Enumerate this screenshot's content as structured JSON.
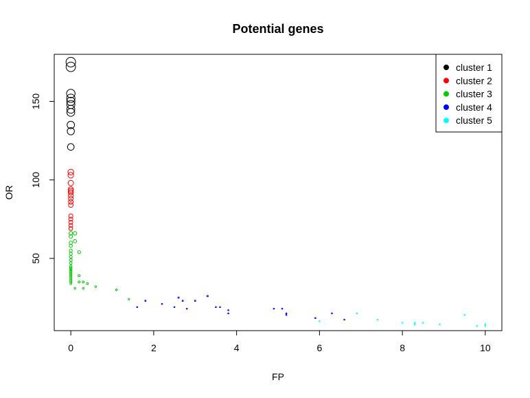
{
  "chart_data": {
    "type": "scatter",
    "title": "Potential genes",
    "xlabel": "FP",
    "ylabel": "OR",
    "xlim": [
      -0.4,
      10.4
    ],
    "ylim": [
      4,
      180
    ],
    "x_ticks": [
      0,
      2,
      4,
      6,
      8,
      10
    ],
    "y_ticks": [
      50,
      100,
      150
    ],
    "grid": false,
    "legend_position": "top-right",
    "series": [
      {
        "name": "cluster 1",
        "color": "#000000",
        "points": [
          [
            0,
            175
          ],
          [
            0,
            172
          ],
          [
            0,
            155
          ],
          [
            0,
            152
          ],
          [
            0,
            150
          ],
          [
            0,
            148
          ],
          [
            0,
            145
          ],
          [
            0,
            143
          ],
          [
            0,
            135
          ],
          [
            0,
            131
          ],
          [
            0,
            121
          ]
        ]
      },
      {
        "name": "cluster 2",
        "color": "#ff0000",
        "points": [
          [
            0,
            105
          ],
          [
            0,
            103
          ],
          [
            0,
            98
          ],
          [
            0,
            94
          ],
          [
            0,
            93
          ],
          [
            0,
            92
          ],
          [
            0,
            90
          ],
          [
            0,
            88
          ],
          [
            0,
            86
          ],
          [
            0,
            84
          ],
          [
            0,
            77
          ],
          [
            0,
            75
          ],
          [
            0,
            73
          ],
          [
            0,
            71
          ],
          [
            0,
            69
          ]
        ]
      },
      {
        "name": "cluster 3",
        "color": "#00cd00",
        "points": [
          [
            0,
            66
          ],
          [
            0,
            64
          ],
          [
            0,
            60
          ],
          [
            0,
            58
          ],
          [
            0,
            55
          ],
          [
            0,
            53
          ],
          [
            0,
            51
          ],
          [
            0,
            49
          ],
          [
            0,
            47
          ],
          [
            0,
            45
          ],
          [
            0,
            44
          ],
          [
            0,
            43
          ],
          [
            0,
            42
          ],
          [
            0,
            41
          ],
          [
            0,
            40
          ],
          [
            0,
            39
          ],
          [
            0,
            38
          ],
          [
            0,
            37
          ],
          [
            0,
            36
          ],
          [
            0,
            35
          ],
          [
            0,
            34
          ],
          [
            0.1,
            66
          ],
          [
            0.1,
            61
          ],
          [
            0.1,
            31
          ],
          [
            0.2,
            54
          ],
          [
            0.2,
            39
          ],
          [
            0.2,
            35
          ],
          [
            0.3,
            35
          ],
          [
            0.3,
            31
          ],
          [
            0.4,
            34
          ],
          [
            0.6,
            32
          ],
          [
            1.1,
            30
          ],
          [
            1.4,
            24
          ]
        ]
      },
      {
        "name": "cluster 4",
        "color": "#0000ff",
        "points": [
          [
            1.6,
            19
          ],
          [
            1.8,
            23
          ],
          [
            2.2,
            21
          ],
          [
            2.5,
            19
          ],
          [
            2.6,
            25
          ],
          [
            2.7,
            23
          ],
          [
            2.8,
            18
          ],
          [
            3.0,
            23
          ],
          [
            3.3,
            26
          ],
          [
            3.5,
            19
          ],
          [
            3.6,
            19
          ],
          [
            3.8,
            17
          ],
          [
            3.8,
            15
          ],
          [
            4.9,
            18
          ],
          [
            5.1,
            18
          ],
          [
            5.2,
            15
          ],
          [
            5.2,
            14
          ],
          [
            5.9,
            12
          ],
          [
            6.3,
            15
          ],
          [
            6.6,
            11
          ]
        ]
      },
      {
        "name": "cluster 5",
        "color": "#00ffff",
        "points": [
          [
            6.0,
            10
          ],
          [
            6.9,
            15
          ],
          [
            7.4,
            11
          ],
          [
            8.0,
            9
          ],
          [
            8.3,
            9
          ],
          [
            8.3,
            8
          ],
          [
            8.5,
            9
          ],
          [
            8.9,
            8
          ],
          [
            9.5,
            14
          ],
          [
            9.8,
            7
          ],
          [
            10.0,
            8
          ],
          [
            10.0,
            7
          ]
        ]
      }
    ]
  }
}
